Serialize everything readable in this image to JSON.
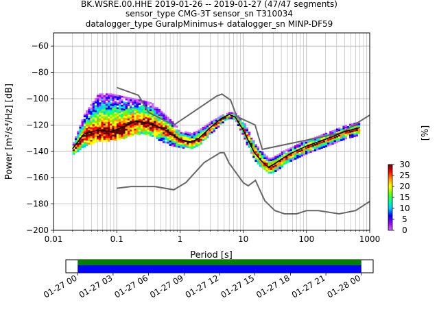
{
  "title": {
    "line1": "BK.WSRE.00.HHE   2019-01-26 -- 2019-01-27  (47/47 segments)",
    "line2": "sensor_type CMG-3T sensor_sn T310034",
    "line3": "datalogger_type GuralpMinimus+ datalogger_sn MINP-DF59"
  },
  "chart_data": [
    {
      "type": "heatmap",
      "subtype": "probabilistic-power-spectral-density",
      "xlabel": "Period [s]",
      "ylabel": "Power [m²/s⁴/Hz] [dB]",
      "xscale": "log",
      "xlim": [
        0.01,
        1000
      ],
      "ylim": [
        -200,
        -50
      ],
      "xticks": [
        {
          "value": 0.01,
          "label": "0.01"
        },
        {
          "value": 0.1,
          "label": "0.1"
        },
        {
          "value": 1,
          "label": "1"
        },
        {
          "value": 10,
          "label": "10"
        },
        {
          "value": 100,
          "label": "100"
        },
        {
          "value": 1000,
          "label": "1000"
        }
      ],
      "yticks": [
        {
          "value": -60,
          "label": "−60"
        },
        {
          "value": -80,
          "label": "−80"
        },
        {
          "value": -100,
          "label": "−100"
        },
        {
          "value": -120,
          "label": "−120"
        },
        {
          "value": -140,
          "label": "−140"
        },
        {
          "value": -160,
          "label": "−160"
        },
        {
          "value": -180,
          "label": "−180"
        },
        {
          "value": -200,
          "label": "−200"
        }
      ],
      "grid": true,
      "colorbar": {
        "label": "[%]",
        "min": 0,
        "max": 30,
        "ticks": [
          {
            "value": 0,
            "label": "0"
          },
          {
            "value": 5,
            "label": "5"
          },
          {
            "value": 10,
            "label": "10"
          },
          {
            "value": 15,
            "label": "15"
          },
          {
            "value": 20,
            "label": "20"
          },
          {
            "value": 25,
            "label": "25"
          },
          {
            "value": 30,
            "label": "30"
          }
        ],
        "colors": [
          "#ffffff",
          "#cc66ff",
          "#9900ff",
          "#0000ff",
          "#00ccff",
          "#00ff99",
          "#66ff00",
          "#ffff00",
          "#ff9900",
          "#ff0000",
          "#660000"
        ]
      },
      "colors": {
        "model": "#666666",
        "mode": "#000000"
      },
      "series": [
        {
          "role": "high-noise-model",
          "x": [
            0.1,
            0.22,
            0.32,
            0.8,
            3.8,
            4.6,
            6.3,
            7.9,
            15.4,
            20,
            354.8,
            1000
          ],
          "y": [
            -91.5,
            -97.4,
            -110.5,
            -120,
            -98,
            -96.5,
            -101,
            -113.5,
            -120,
            -138.5,
            -126,
            -112.5
          ]
        },
        {
          "role": "low-noise-model",
          "x": [
            0.1,
            0.17,
            0.4,
            0.8,
            1.24,
            2.4,
            4.3,
            5,
            6,
            10,
            12,
            15.6,
            21.9,
            31.6,
            45,
            70,
            101,
            154,
            328,
            600,
            1000
          ],
          "y": [
            -168,
            -166.7,
            -166.7,
            -169.2,
            -163.7,
            -148.6,
            -141.1,
            -141.1,
            -149,
            -163.8,
            -166.2,
            -162.1,
            -177.5,
            -185,
            -187.5,
            -187.5,
            -185,
            -185,
            -187.5,
            -185,
            -178
          ]
        },
        {
          "role": "mode",
          "x": [
            0.02,
            0.03,
            0.05,
            0.08,
            0.12,
            0.2,
            0.35,
            0.6,
            1,
            1.5,
            2,
            3,
            4.5,
            6,
            7.5,
            10,
            15,
            20,
            25,
            30,
            40,
            60,
            100,
            150,
            250,
            400,
            700
          ],
          "y": [
            -138,
            -127,
            -124,
            -125,
            -122,
            -117,
            -119,
            -124,
            -131,
            -133,
            -130,
            -122,
            -115,
            -112,
            -114,
            -124,
            -141,
            -148,
            -152,
            -150,
            -146,
            -141,
            -136,
            -133,
            -129,
            -125,
            -122
          ]
        }
      ],
      "heatmap_cloud": {
        "x": [
          0.02,
          0.03,
          0.05,
          0.08,
          0.12,
          0.2,
          0.35,
          0.6,
          1,
          1.5,
          2,
          3,
          4.5,
          6,
          7.5,
          10,
          15,
          20,
          25,
          30,
          40,
          60,
          100,
          150,
          250,
          400,
          700
        ],
        "upper": [
          -133,
          -111,
          -96,
          -96,
          -98,
          -100,
          -103,
          -113,
          -124,
          -126,
          -123,
          -117,
          -112,
          -110,
          -111,
          -118,
          -134,
          -141,
          -145,
          -144,
          -140,
          -136,
          -131,
          -128,
          -124,
          -120,
          -117
        ],
        "lower": [
          -142,
          -136,
          -132,
          -131,
          -130,
          -126,
          -128,
          -134,
          -137,
          -137,
          -134,
          -126,
          -118,
          -114,
          -117,
          -130,
          -147,
          -153,
          -156,
          -155,
          -151,
          -146,
          -141,
          -138,
          -134,
          -130,
          -127
        ]
      }
    },
    {
      "type": "timeline",
      "role": "data-coverage",
      "xlim": [
        "2019-01-26 23:00",
        "2019-01-28 01:00"
      ],
      "coverage": [
        {
          "start": "2019-01-27 00:00",
          "end": "2019-01-28 00:00"
        }
      ],
      "bar_colors": {
        "top": "#008000",
        "bottom": "#0000ff"
      },
      "xticks": [
        "01-27 00",
        "01-27 03",
        "01-27 06",
        "01-27 09",
        "01-27 12",
        "01-27 15",
        "01-27 18",
        "01-27 21",
        "01-28 00"
      ]
    }
  ]
}
